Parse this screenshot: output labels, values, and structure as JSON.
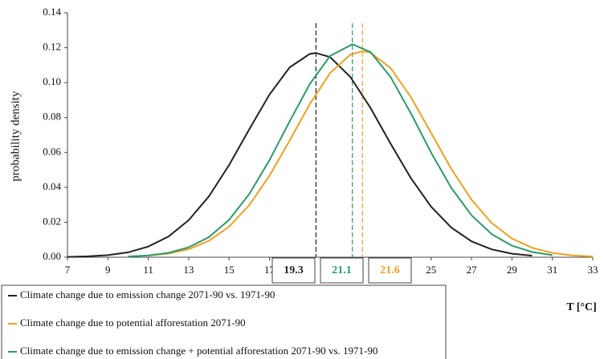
{
  "chart_data": {
    "type": "line",
    "y_label": "probability density",
    "x_label": "T [°C]",
    "xlim": [
      7,
      33
    ],
    "xticks": [
      7,
      9,
      11,
      13,
      15,
      17,
      19,
      21,
      23,
      25,
      27,
      29,
      31,
      33
    ],
    "ylim": [
      0,
      0.14
    ],
    "yticks": [
      {
        "value": 0,
        "label": "0.00"
      },
      {
        "value": 0.02,
        "label": "0.02"
      },
      {
        "value": 0.04,
        "label": "0.04"
      },
      {
        "value": 0.06,
        "label": "0.06"
      },
      {
        "value": 0.08,
        "label": "0.08"
      },
      {
        "value": 0.1,
        "label": "0.10"
      },
      {
        "value": 0.12,
        "label": "0.12"
      },
      {
        "value": 0.14,
        "label": "0.14"
      }
    ],
    "series": [
      {
        "name": "Climate change due to emission change 2071-90 vs. 1971-90",
        "color": "#222222",
        "x": [
          7,
          8,
          9,
          10,
          11,
          12,
          13,
          14,
          15,
          16,
          17,
          18,
          19,
          19.3,
          20,
          21,
          22,
          23,
          24,
          25,
          26,
          27,
          28,
          29,
          30
        ],
        "values": [
          0.0002,
          0.0005,
          0.0012,
          0.0028,
          0.0061,
          0.0119,
          0.0212,
          0.0349,
          0.0528,
          0.0733,
          0.0932,
          0.1088,
          0.1165,
          0.117,
          0.1146,
          0.1033,
          0.0855,
          0.0649,
          0.0453,
          0.0289,
          0.017,
          0.0091,
          0.0045,
          0.002,
          0.0009
        ]
      },
      {
        "name": "Climate change due to potential afforestation 2071-90",
        "color": "#f0a020",
        "x": [
          11,
          12,
          13,
          14,
          15,
          16,
          17,
          18,
          19,
          20,
          21,
          21.6,
          22,
          23,
          24,
          25,
          26,
          27,
          28,
          29,
          30,
          31,
          32,
          33
        ],
        "values": [
          0.0009,
          0.0021,
          0.0046,
          0.0094,
          0.0175,
          0.0299,
          0.0467,
          0.0669,
          0.0878,
          0.1055,
          0.1161,
          0.118,
          0.1172,
          0.1083,
          0.0917,
          0.0712,
          0.0506,
          0.0329,
          0.0196,
          0.0107,
          0.0054,
          0.0025,
          0.001,
          0.0004
        ]
      },
      {
        "name": "Climate change due to emission change + potential afforestation 2071-90 vs. 1971-90",
        "color": "#2a9a6a",
        "x": [
          10,
          11,
          12,
          13,
          14,
          15,
          16,
          17,
          18,
          19,
          20,
          21.1,
          22,
          23,
          24,
          25,
          26,
          27,
          28,
          29,
          30,
          31
        ],
        "values": [
          0.0004,
          0.001,
          0.0025,
          0.0057,
          0.0115,
          0.0214,
          0.0362,
          0.0556,
          0.0779,
          0.0993,
          0.1153,
          0.122,
          0.1175,
          0.1031,
          0.0824,
          0.0599,
          0.0397,
          0.024,
          0.0132,
          0.0066,
          0.003,
          0.0012
        ]
      }
    ],
    "markers": [
      {
        "value": 19.3,
        "color": "#222222"
      },
      {
        "value": 21.1,
        "color": "#2a9a6a"
      },
      {
        "value": 21.6,
        "color": "#f0a020"
      }
    ]
  }
}
